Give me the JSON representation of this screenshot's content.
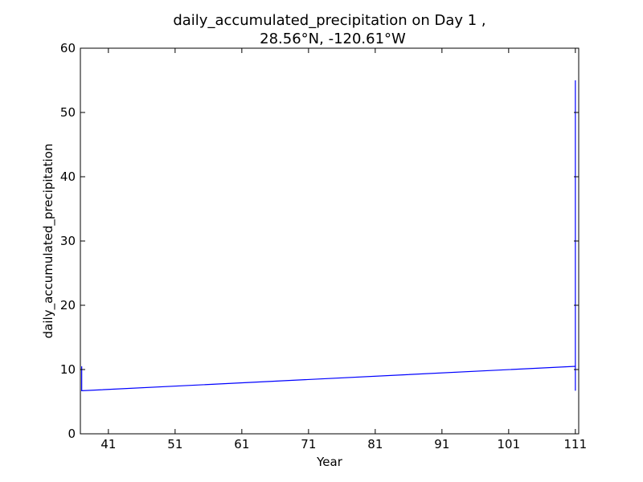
{
  "chart_data": {
    "type": "line",
    "title_line1": "daily_accumulated_precipitation on Day 1 ,",
    "title_line2": "28.56°N, -120.61°W",
    "xlabel": "Year",
    "ylabel": "daily_accumulated_precipitation",
    "xlim": [
      36.8,
      111.5
    ],
    "ylim": [
      0,
      60
    ],
    "xticks": [
      41,
      51,
      61,
      71,
      81,
      91,
      101,
      111
    ],
    "yticks": [
      0,
      10,
      20,
      30,
      40,
      50,
      60
    ],
    "grid": false,
    "line_color": "#0000ff",
    "series": [
      {
        "x": [
          37,
          37,
          111,
          111,
          111,
          111
        ],
        "y": [
          10.5,
          6.7,
          10.5,
          6.7,
          55,
          28.5
        ]
      }
    ]
  }
}
